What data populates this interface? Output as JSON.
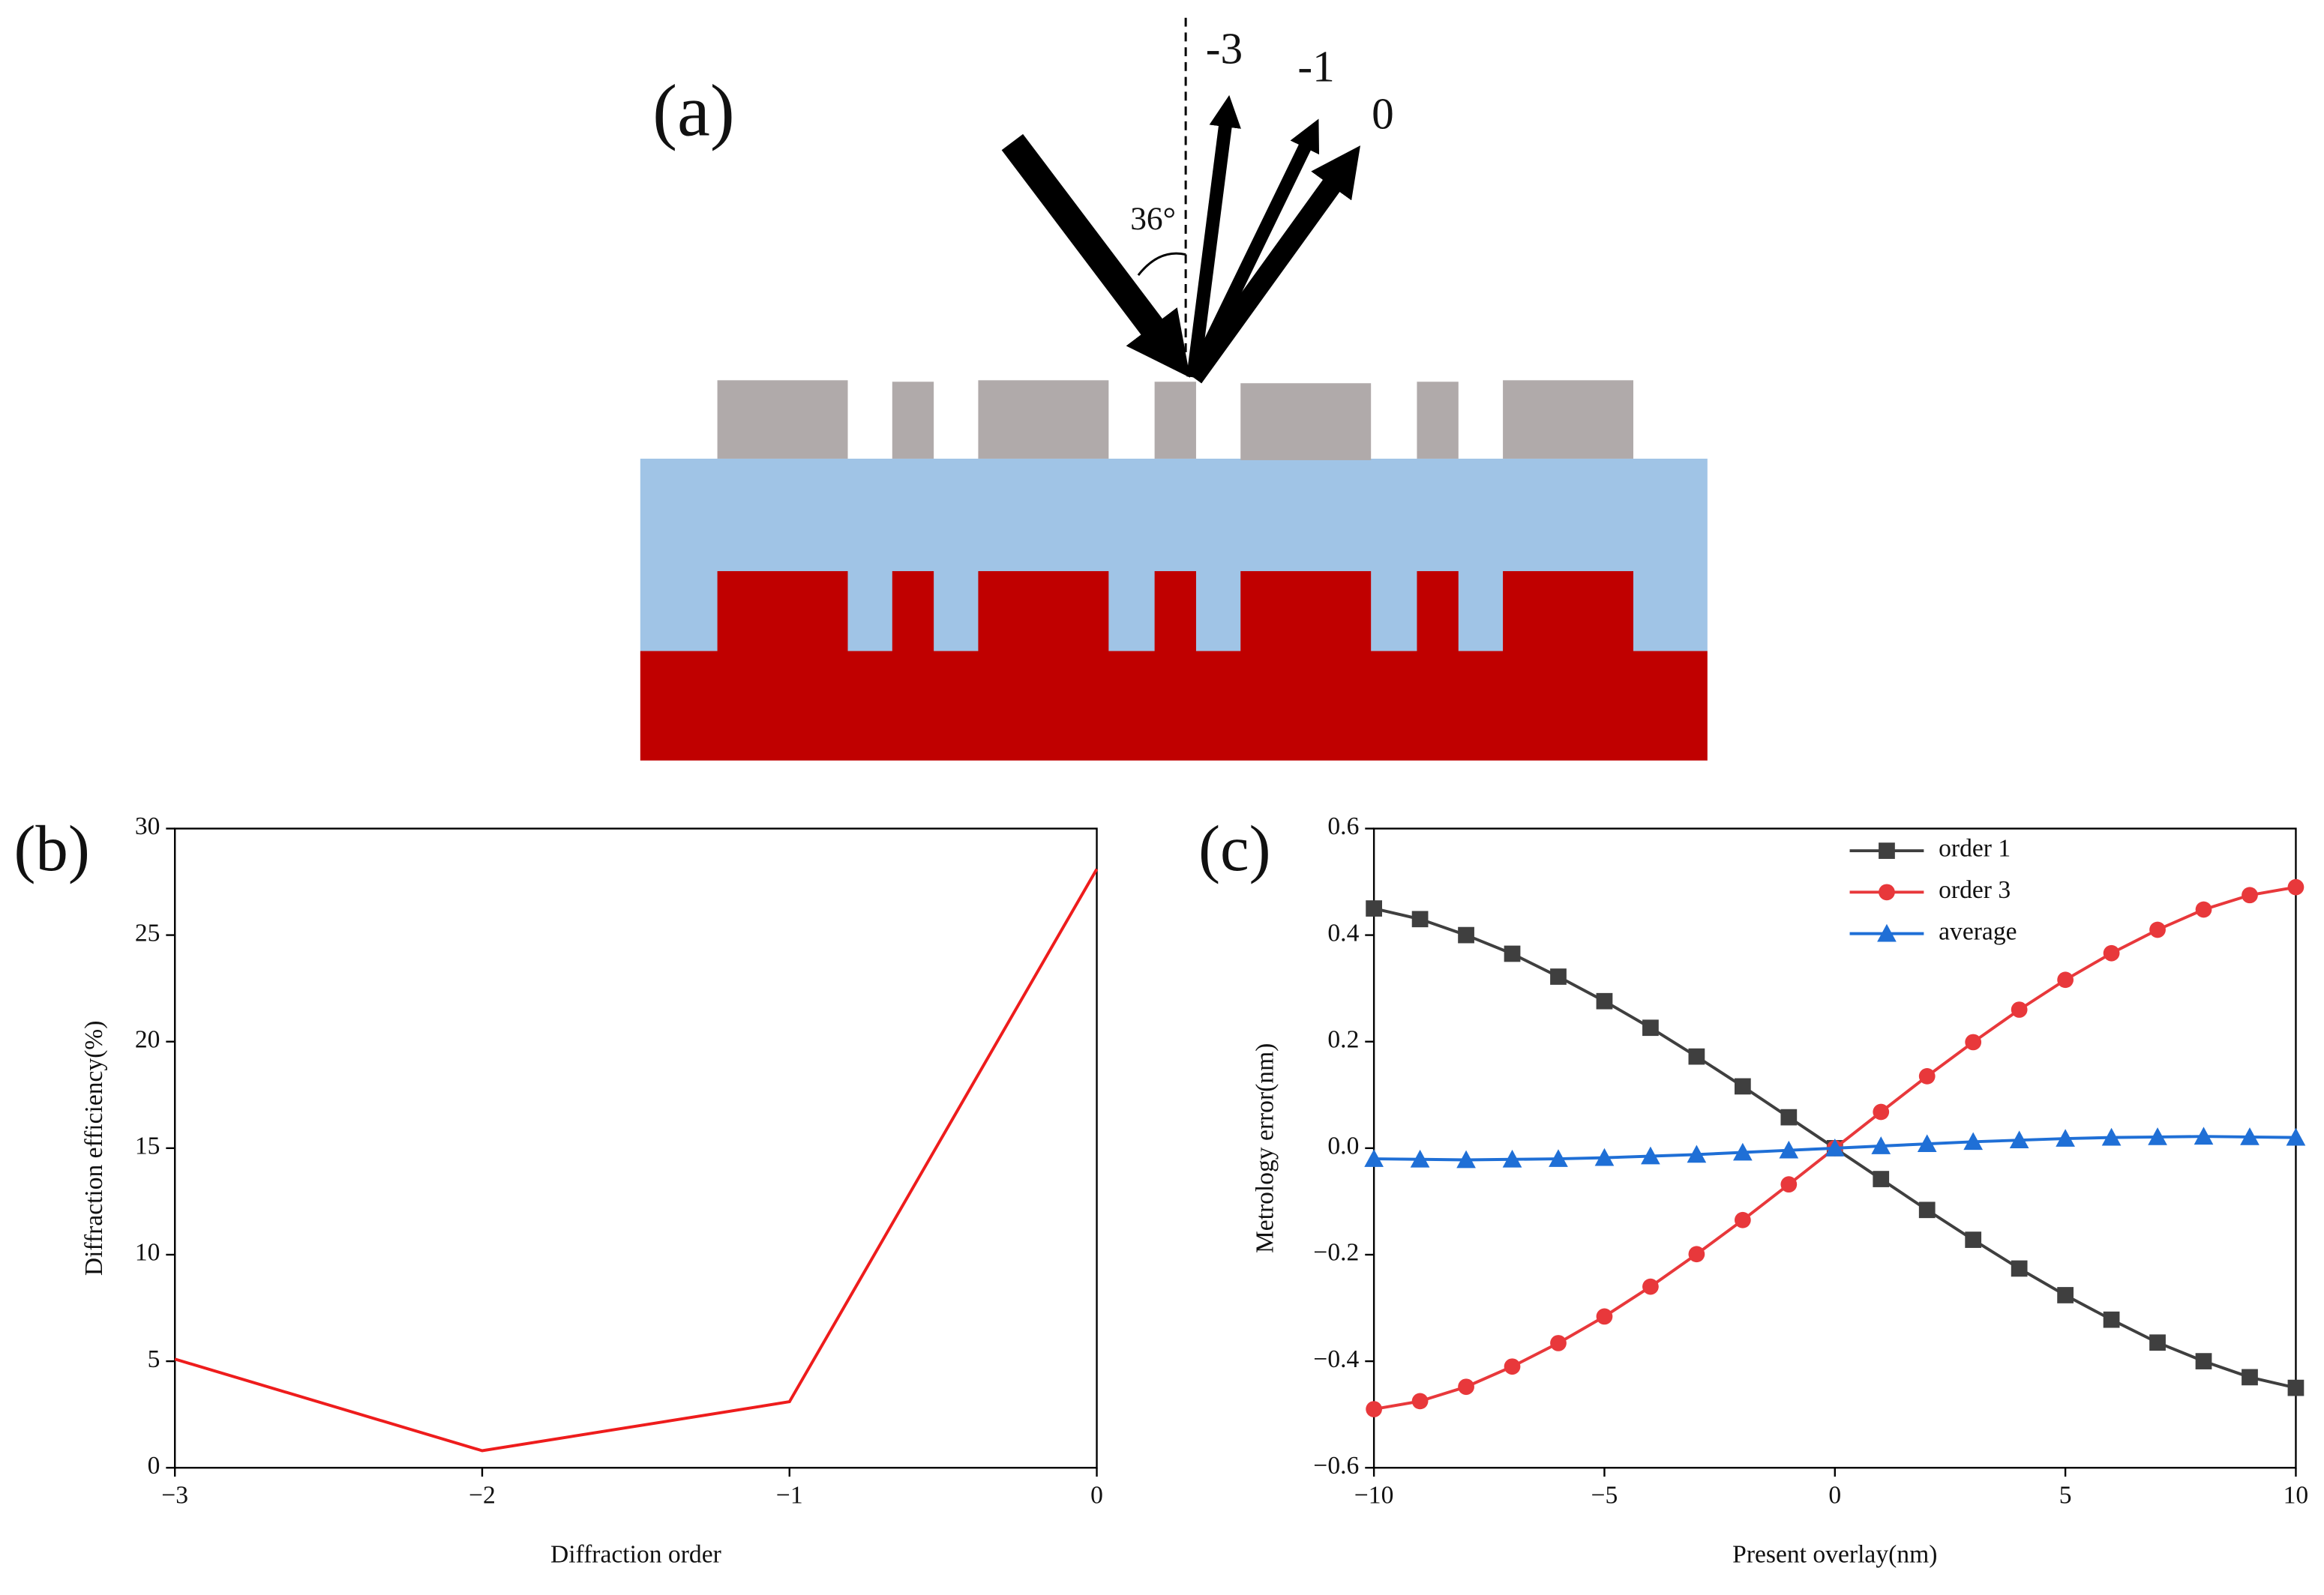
{
  "panel_a": {
    "label": "(a)",
    "orders": [
      "-3",
      "-1",
      "0"
    ],
    "angle": "36°"
  },
  "chart_data": [
    {
      "type": "line",
      "label": "(b)",
      "xlabel": "Diffraction order",
      "ylabel": "Diffraction efficiency(%)",
      "x": [
        -3,
        -2,
        -1,
        0
      ],
      "values": [
        5.1,
        0.8,
        3.1,
        28.1
      ],
      "color": "#ee1c1c",
      "xlim": [
        -3,
        0
      ],
      "xticks": [
        {
          "value": -3,
          "label": "−3"
        },
        {
          "value": -2,
          "label": "−2"
        },
        {
          "value": -1,
          "label": "−1"
        },
        0
      ],
      "ylim": [
        0,
        30
      ],
      "yticks": [
        0,
        5,
        10,
        15,
        20,
        25,
        30
      ]
    },
    {
      "type": "line",
      "label": "(c)",
      "xlabel": "Present overlay(nm)",
      "ylabel": "Metrology error(nm)",
      "x": [
        -10,
        -9,
        -8,
        -7,
        -6,
        -5,
        -4,
        -3,
        -2,
        -1,
        0,
        1,
        2,
        3,
        4,
        5,
        6,
        7,
        8,
        9,
        10
      ],
      "series": [
        {
          "name": "order 1",
          "color": "#3f3f3f",
          "marker": "square",
          "values": [
            0.45,
            0.43,
            0.4,
            0.365,
            0.322,
            0.276,
            0.226,
            0.172,
            0.116,
            0.058,
            0,
            -0.058,
            -0.116,
            -0.172,
            -0.226,
            -0.276,
            -0.322,
            -0.365,
            -0.4,
            -0.43,
            -0.45
          ]
        },
        {
          "name": "order 3",
          "color": "#e8383b",
          "marker": "circle",
          "values": [
            -0.49,
            -0.475,
            -0.448,
            -0.41,
            -0.366,
            -0.316,
            -0.26,
            -0.199,
            -0.135,
            -0.068,
            0,
            0.068,
            0.135,
            0.199,
            0.26,
            0.316,
            0.366,
            0.41,
            0.448,
            0.475,
            0.49
          ]
        },
        {
          "name": "average",
          "color": "#1f6fd6",
          "marker": "triangle",
          "values": [
            -0.02,
            -0.021,
            -0.022,
            -0.021,
            -0.02,
            -0.018,
            -0.015,
            -0.012,
            -0.008,
            -0.004,
            0,
            0.004,
            0.008,
            0.012,
            0.015,
            0.018,
            0.02,
            0.021,
            0.022,
            0.021,
            0.02
          ]
        }
      ],
      "legend": "upper center",
      "xlim": [
        -10,
        10
      ],
      "xticks": [
        {
          "value": -10,
          "label": "−10"
        },
        {
          "value": -5,
          "label": "−5"
        },
        0,
        5,
        10
      ],
      "ylim": [
        -0.6,
        0.6
      ],
      "yticks": [
        {
          "value": -0.6,
          "label": "−0.6"
        },
        {
          "value": -0.4,
          "label": "−0.4"
        },
        {
          "value": -0.2,
          "label": "−0.2"
        },
        {
          "value": 0,
          "label": "0.0"
        },
        0.2,
        0.4,
        0.6
      ]
    }
  ]
}
